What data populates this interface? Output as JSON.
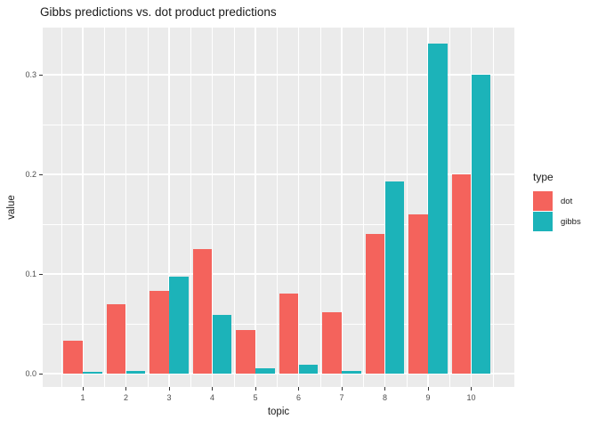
{
  "chart_data": {
    "type": "bar",
    "title": "Gibbs predictions vs. dot product predictions",
    "xlabel": "topic",
    "ylabel": "value",
    "categories": [
      "1",
      "2",
      "3",
      "4",
      "5",
      "6",
      "7",
      "8",
      "9",
      "10"
    ],
    "series": [
      {
        "name": "dot",
        "color": "#F4635C",
        "values": [
          0.033,
          0.07,
          0.083,
          0.125,
          0.044,
          0.08,
          0.062,
          0.14,
          0.16,
          0.2
        ]
      },
      {
        "name": "gibbs",
        "color": "#1CB3B9",
        "values": [
          0.002,
          0.003,
          0.097,
          0.059,
          0.005,
          0.009,
          0.003,
          0.193,
          0.331,
          0.3
        ]
      }
    ],
    "yticks": [
      "0.0",
      "0.1",
      "0.2",
      "0.3"
    ],
    "ylim": [
      0,
      0.347
    ],
    "legend_title": "type",
    "legend_position": "right",
    "grid": "white major and minor gridlines on gray panel"
  },
  "colors": {
    "background": "#FFFFFF",
    "panel_bg": "#EBEBEB",
    "grid_line": "#FFFFFF",
    "tick_text": "#4D4D4D",
    "axis_title_text": "#1A1A1A",
    "tick_mark": "#333333"
  }
}
